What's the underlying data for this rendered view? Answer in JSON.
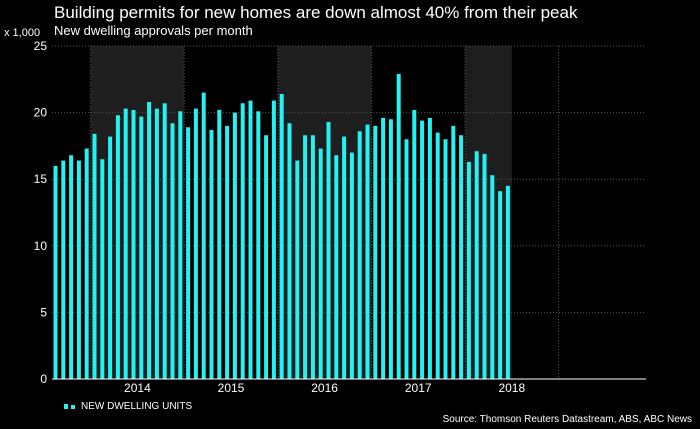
{
  "header": {
    "title": "Building permits for new homes are down almost 40% from their peak",
    "subtitle": "New dwelling approvals per month",
    "unit_label": "x 1,000"
  },
  "legend": {
    "label": "NEW DWELLING UNITS"
  },
  "footer": {
    "source": "Source: Thomson Reuters Datastream, ABS, ABC News"
  },
  "colors": {
    "bar": "#22f2f2",
    "background": "#000000",
    "shade": "#1e1e1e",
    "grid": "#555555"
  },
  "chart_data": {
    "type": "bar",
    "ylim": [
      0,
      25
    ],
    "yticks": [
      0,
      5,
      10,
      15,
      20,
      25
    ],
    "grid": true,
    "legend_position": "bottom-left",
    "year_labels": [
      "2014",
      "2015",
      "2016",
      "2017",
      "2018"
    ],
    "series": [
      {
        "name": "NEW DWELLING UNITS",
        "values": [
          16.0,
          16.4,
          16.8,
          16.4,
          17.3,
          18.4,
          16.5,
          18.2,
          19.8,
          20.3,
          20.2,
          19.7,
          20.8,
          20.3,
          20.7,
          19.2,
          20.1,
          18.9,
          20.3,
          21.5,
          18.7,
          20.2,
          19.0,
          20.0,
          20.7,
          20.9,
          20.1,
          18.3,
          20.9,
          21.4,
          19.2,
          16.4,
          18.3,
          18.3,
          17.3,
          19.3,
          16.8,
          18.2,
          17.0,
          18.6,
          19.1,
          19.0,
          19.6,
          19.5,
          22.9,
          18.0,
          20.2,
          19.4,
          19.6,
          18.5,
          18.0,
          19.0,
          18.3,
          16.3,
          17.1,
          16.9,
          15.3,
          14.1,
          14.5
        ]
      }
    ]
  }
}
